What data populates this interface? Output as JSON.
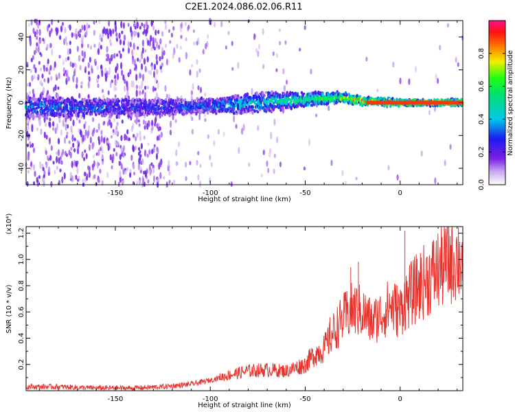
{
  "title": "C2E1.2024.086.02.06.R11",
  "chart_data": [
    {
      "type": "heatmap",
      "name": "spectrogram",
      "xlabel": "Height of straight line (km)",
      "ylabel": "Frequency (Hz)",
      "xlim": [
        -197,
        33
      ],
      "ylim": [
        -50,
        50
      ],
      "xticks": [
        -150,
        -100,
        -50,
        0
      ],
      "yticks": [
        -40,
        -20,
        0,
        20,
        40
      ],
      "colorbar": {
        "label": "Normalized spectral amplitude",
        "ticks": [
          "0.0",
          "0.2",
          "0.4",
          "0.6",
          "0.8"
        ],
        "range": [
          0,
          1
        ]
      },
      "description_points": {
        "center_freq_x": [
          -197,
          -150,
          -100,
          -75,
          -50,
          -30,
          -20,
          0,
          33
        ],
        "center_freq_y": [
          -3,
          -3,
          -2,
          0,
          2,
          3,
          1,
          0,
          0
        ],
        "band_halfwidth": [
          6,
          5,
          4,
          6,
          4,
          3,
          2,
          1.5,
          1.5
        ],
        "peak_amplitude": [
          0.35,
          0.3,
          0.3,
          0.45,
          0.55,
          0.7,
          0.9,
          0.9,
          0.9
        ]
      }
    },
    {
      "type": "line",
      "name": "snr",
      "xlabel": "Height of straight line (km)",
      "ylabel": "SNR (10 * v/v)",
      "scale_label": "(x10⁴)",
      "xlim": [
        -197,
        33
      ],
      "ylim": [
        0,
        1.25
      ],
      "xticks": [
        -150,
        -100,
        -50,
        0
      ],
      "yticks": [
        "0.2",
        "0.4",
        "0.6",
        "0.8",
        "1.0",
        "1.2"
      ],
      "series": [
        {
          "name": "SNR",
          "color": "#e8322d",
          "x": [
            -197,
            -180,
            -160,
            -140,
            -125,
            -110,
            -100,
            -90,
            -80,
            -70,
            -60,
            -50,
            -45,
            -40,
            -35,
            -30,
            -25,
            -20,
            -15,
            -10,
            -5,
            0,
            2,
            5,
            10,
            15,
            20,
            25,
            30,
            33
          ],
          "y": [
            0.03,
            0.03,
            0.02,
            0.02,
            0.03,
            0.05,
            0.08,
            0.12,
            0.15,
            0.16,
            0.15,
            0.2,
            0.28,
            0.32,
            0.45,
            0.55,
            0.62,
            0.6,
            0.52,
            0.58,
            0.65,
            0.6,
            0.68,
            0.72,
            0.8,
            0.86,
            0.92,
            0.98,
            1.02,
            1.0
          ]
        }
      ],
      "spikes": [
        {
          "x": 2.5,
          "y": 1.22
        },
        {
          "x": -26,
          "y": 0.94
        },
        {
          "x": -22,
          "y": 0.98
        },
        {
          "x": -37,
          "y": 0.56
        }
      ]
    }
  ],
  "colors": {
    "line": "#e8322d",
    "axis": "#000000"
  }
}
